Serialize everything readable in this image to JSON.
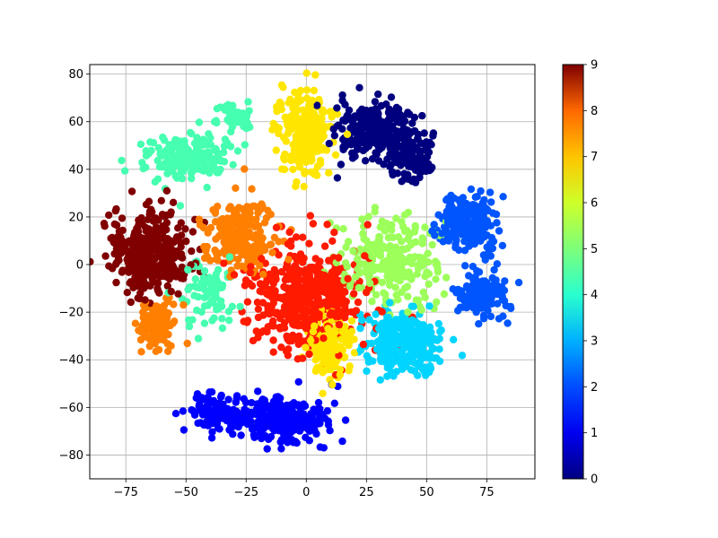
{
  "chart_data": {
    "type": "scatter",
    "title": "",
    "xlabel": "",
    "ylabel": "",
    "xlim": [
      -90,
      95
    ],
    "ylim": [
      -90,
      84
    ],
    "grid": true,
    "xticks": [
      -75,
      -50,
      -25,
      0,
      25,
      50,
      75
    ],
    "yticks": [
      -80,
      -60,
      -40,
      -20,
      0,
      20,
      40,
      60,
      80
    ],
    "x_tick_labels": [
      "−75",
      "−50",
      "−25",
      "0",
      "25",
      "50",
      "75"
    ],
    "y_tick_labels": [
      "−80",
      "−60",
      "−40",
      "−20",
      "0",
      "20",
      "40",
      "60",
      "80"
    ],
    "colormap": "jet",
    "colorbar": {
      "range": [
        0,
        9
      ],
      "ticks": [
        0,
        1,
        2,
        3,
        4,
        5,
        6,
        7,
        8,
        9
      ],
      "tick_labels": [
        "0",
        "1",
        "2",
        "3",
        "4",
        "5",
        "6",
        "7",
        "8",
        "9"
      ],
      "colors": [
        "#000080",
        "#0000f1",
        "#004cff",
        "#00b0ff",
        "#29ffce",
        "#7dff7a",
        "#ceff29",
        "#ffc400",
        "#ff6800",
        "#7f0000"
      ]
    },
    "clusters": [
      {
        "label": 0,
        "color": "#00007f",
        "center": [
          30,
          55
        ],
        "spread": [
          14,
          10
        ],
        "count": 260
      },
      {
        "label": 0,
        "color": "#00007f",
        "center": [
          42,
          45
        ],
        "spread": [
          8,
          8
        ],
        "count": 120
      },
      {
        "label": 1,
        "color": "#0000ff",
        "center": [
          -10,
          -65
        ],
        "spread": [
          15,
          8
        ],
        "count": 260
      },
      {
        "label": 1,
        "color": "#0000ff",
        "center": [
          -38,
          -62
        ],
        "spread": [
          9,
          6
        ],
        "count": 110
      },
      {
        "label": 2,
        "color": "#0055ff",
        "center": [
          68,
          18
        ],
        "spread": [
          9,
          10
        ],
        "count": 220
      },
      {
        "label": 2,
        "color": "#0055ff",
        "center": [
          73,
          -12
        ],
        "spread": [
          8,
          8
        ],
        "count": 150
      },
      {
        "label": 3,
        "color": "#00d4ff",
        "center": [
          40,
          -32
        ],
        "spread": [
          12,
          11
        ],
        "count": 300
      },
      {
        "label": 4,
        "color": "#46ffb0",
        "center": [
          -50,
          45
        ],
        "spread": [
          14,
          8
        ],
        "count": 200
      },
      {
        "label": 4,
        "color": "#46ffb0",
        "center": [
          -30,
          62
        ],
        "spread": [
          6,
          5
        ],
        "count": 60
      },
      {
        "label": 4,
        "color": "#46ffb0",
        "center": [
          -40,
          -10
        ],
        "spread": [
          10,
          12
        ],
        "count": 80
      },
      {
        "label": 5,
        "color": "#9cff5a",
        "center": [
          35,
          2
        ],
        "spread": [
          15,
          14
        ],
        "count": 260
      },
      {
        "label": 6,
        "color": "#ffe600",
        "center": [
          0,
          55
        ],
        "spread": [
          9,
          14
        ],
        "count": 260
      },
      {
        "label": 6,
        "color": "#ffe600",
        "center": [
          10,
          -35
        ],
        "spread": [
          8,
          10
        ],
        "count": 140
      },
      {
        "label": 7,
        "color": "#ff7f00",
        "center": [
          -28,
          12
        ],
        "spread": [
          12,
          12
        ],
        "count": 220
      },
      {
        "label": 7,
        "color": "#ff7f00",
        "center": [
          -62,
          -25
        ],
        "spread": [
          6,
          7
        ],
        "count": 120
      },
      {
        "label": 8,
        "color": "#ff1a00",
        "center": [
          0,
          -15
        ],
        "spread": [
          18,
          18
        ],
        "count": 480
      },
      {
        "label": 9,
        "color": "#800000",
        "center": [
          -65,
          5
        ],
        "spread": [
          13,
          14
        ],
        "count": 360
      }
    ]
  }
}
